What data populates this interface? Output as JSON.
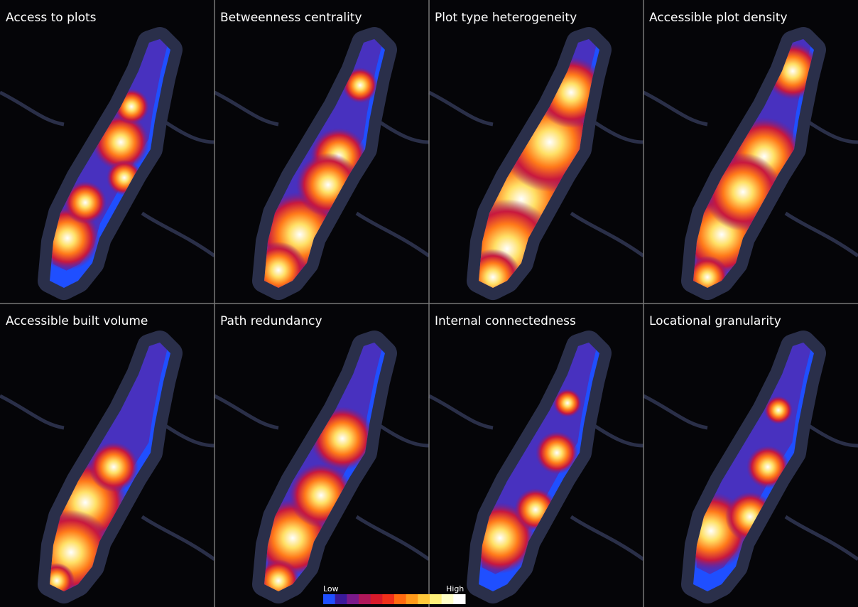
{
  "panels": [
    {
      "title": "Access to plots"
    },
    {
      "title": "Betweenness centrality"
    },
    {
      "title": "Plot type heterogeneity"
    },
    {
      "title": "Accessible plot density"
    },
    {
      "title": "Accessible built volume"
    },
    {
      "title": "Path redundancy"
    },
    {
      "title": "Internal connectedness"
    },
    {
      "title": "Locational granularity"
    }
  ],
  "legend": {
    "low": "Low",
    "high": "High",
    "colors": [
      "#1f4fff",
      "#3a1a9a",
      "#7a1a8a",
      "#b0185a",
      "#d81a2a",
      "#f0301a",
      "#ff6a10",
      "#ff9a1a",
      "#ffc83a",
      "#fff07a",
      "#ffffc8",
      "#ffffff"
    ]
  }
}
